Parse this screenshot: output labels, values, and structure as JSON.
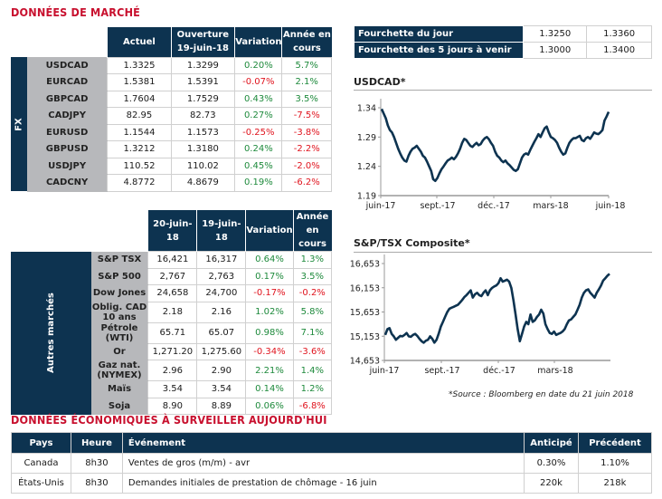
{
  "market_title": "DONNÉES DE MARCHÉ",
  "fx": {
    "group_label": "FX",
    "headers": [
      "Actuel",
      "Ouverture",
      "19-juin-18",
      "Variation",
      "Année en",
      "cours"
    ],
    "rows": [
      {
        "name": "USDCAD",
        "actuel": "1.3325",
        "ouverture": "1.3299",
        "variation": "0.20%",
        "ytd": "5.7%"
      },
      {
        "name": "EURCAD",
        "actuel": "1.5381",
        "ouverture": "1.5391",
        "variation": "-0.07%",
        "ytd": "2.1%"
      },
      {
        "name": "GBPCAD",
        "actuel": "1.7604",
        "ouverture": "1.7529",
        "variation": "0.43%",
        "ytd": "3.5%"
      },
      {
        "name": "CADJPY",
        "actuel": "82.95",
        "ouverture": "82.73",
        "variation": "0.27%",
        "ytd": "-7.5%"
      },
      {
        "name": "EURUSD",
        "actuel": "1.1544",
        "ouverture": "1.1573",
        "variation": "-0.25%",
        "ytd": "-3.8%"
      },
      {
        "name": "GBPUSD",
        "actuel": "1.3212",
        "ouverture": "1.3180",
        "variation": "0.24%",
        "ytd": "-2.2%"
      },
      {
        "name": "USDJPY",
        "actuel": "110.52",
        "ouverture": "110.02",
        "variation": "0.45%",
        "ytd": "-2.0%"
      },
      {
        "name": "CADCNY",
        "actuel": "4.8772",
        "ouverture": "4.8679",
        "variation": "0.19%",
        "ytd": "-6.2%"
      }
    ]
  },
  "other": {
    "group_label": "Autres marchés",
    "headers": [
      "20-juin-18",
      "19-juin-18",
      "Variation",
      "Année en",
      "cours"
    ],
    "rows": [
      {
        "name": "S&P TSX",
        "cur": "16,421",
        "prev": "16,317",
        "variation": "0.64%",
        "ytd": "1.3%"
      },
      {
        "name": "S&P 500",
        "cur": "2,767",
        "prev": "2,763",
        "variation": "0.17%",
        "ytd": "3.5%"
      },
      {
        "name": "Dow Jones",
        "cur": "24,658",
        "prev": "24,700",
        "variation": "-0.17%",
        "ytd": "-0.2%"
      },
      {
        "name": "Oblig. CAD 10 ans",
        "cur": "2.18",
        "prev": "2.16",
        "variation": "1.02%",
        "ytd": "5.8%"
      },
      {
        "name": "Pétrole (WTI)",
        "cur": "65.71",
        "prev": "65.07",
        "variation": "0.98%",
        "ytd": "7.1%"
      },
      {
        "name": "Or",
        "cur": "1,271.20",
        "prev": "1,275.60",
        "variation": "-0.34%",
        "ytd": "-3.6%"
      },
      {
        "name": "Gaz nat. (NYMEX)",
        "cur": "2.96",
        "prev": "2.90",
        "variation": "2.21%",
        "ytd": "1.4%"
      },
      {
        "name": "Maïs",
        "cur": "3.54",
        "prev": "3.54",
        "variation": "0.14%",
        "ytd": "1.2%"
      },
      {
        "name": "Soja",
        "cur": "8.90",
        "prev": "8.89",
        "variation": "0.06%",
        "ytd": "-6.8%"
      }
    ]
  },
  "ranges": [
    {
      "label": "Fourchette du jour",
      "low": "1.3250",
      "high": "1.3360"
    },
    {
      "label": "Fourchette des 5 jours à venir",
      "low": "1.3000",
      "high": "1.3400"
    }
  ],
  "colors": {
    "navy": "#0d3350",
    "positive": "#1e8a3c",
    "negative": "#e0141e",
    "title_red": "#c8102e",
    "label_gray": "#b7b8bb"
  },
  "chart_data": [
    {
      "type": "line",
      "title": "USDCAD*",
      "xlabel": "",
      "ylabel": "",
      "ylim": [
        1.19,
        1.34
      ],
      "yticks": [
        "1.34",
        "1.29",
        "1.24",
        "1.19"
      ],
      "ytick_values": [
        1.34,
        1.29,
        1.24,
        1.19
      ],
      "xticks": [
        "juin-17",
        "sept.-17",
        "déc.-17",
        "mars-18",
        "juin-18"
      ],
      "grid": false,
      "series": [
        {
          "name": "USDCAD",
          "values": [
            1.338,
            1.33,
            1.322,
            1.31,
            1.302,
            1.298,
            1.29,
            1.28,
            1.27,
            1.262,
            1.255,
            1.25,
            1.248,
            1.258,
            1.265,
            1.27,
            1.272,
            1.275,
            1.27,
            1.265,
            1.258,
            1.255,
            1.248,
            1.24,
            1.232,
            1.218,
            1.215,
            1.22,
            1.228,
            1.235,
            1.24,
            1.245,
            1.25,
            1.252,
            1.255,
            1.252,
            1.256,
            1.262,
            1.27,
            1.28,
            1.287,
            1.285,
            1.28,
            1.275,
            1.273,
            1.277,
            1.28,
            1.276,
            1.278,
            1.284,
            1.288,
            1.29,
            1.286,
            1.28,
            1.275,
            1.265,
            1.258,
            1.255,
            1.25,
            1.247,
            1.25,
            1.245,
            1.242,
            1.238,
            1.234,
            1.232,
            1.235,
            1.245,
            1.255,
            1.26,
            1.262,
            1.26,
            1.268,
            1.275,
            1.282,
            1.288,
            1.295,
            1.29,
            1.298,
            1.305,
            1.308,
            1.298,
            1.29,
            1.288,
            1.285,
            1.28,
            1.272,
            1.265,
            1.26,
            1.262,
            1.272,
            1.28,
            1.285,
            1.288,
            1.288,
            1.29,
            1.292,
            1.285,
            1.283,
            1.288,
            1.29,
            1.287,
            1.292,
            1.298,
            1.296,
            1.295,
            1.298,
            1.302,
            1.318,
            1.325,
            1.333
          ]
        }
      ]
    },
    {
      "type": "line",
      "title": "S&P/TSX Composite*",
      "xlabel": "",
      "ylabel": "",
      "ylim": [
        14653,
        16653
      ],
      "yticks": [
        "16,653",
        "16,153",
        "15,653",
        "15,153",
        "14,653"
      ],
      "ytick_values": [
        16653,
        16153,
        15653,
        15153,
        14653
      ],
      "xticks": [
        "juin-17",
        "sept.-17",
        "déc.-17",
        "mars-18"
      ],
      "grid": false,
      "series": [
        {
          "name": "S&P/TSX",
          "values": [
            15180,
            15300,
            15320,
            15200,
            15150,
            15080,
            15120,
            15160,
            15150,
            15180,
            15220,
            15150,
            15140,
            15180,
            15200,
            15160,
            15100,
            15050,
            15020,
            15060,
            15080,
            15150,
            15100,
            15020,
            15080,
            15200,
            15350,
            15450,
            15550,
            15650,
            15720,
            15740,
            15760,
            15780,
            15800,
            15850,
            15900,
            15960,
            16000,
            16050,
            16100,
            15950,
            16020,
            16050,
            16000,
            15980,
            16050,
            16100,
            16000,
            16100,
            16150,
            16180,
            16200,
            16250,
            16350,
            16280,
            16300,
            16320,
            16280,
            16150,
            15900,
            15600,
            15300,
            15050,
            15200,
            15350,
            15450,
            15400,
            15600,
            15450,
            15480,
            15550,
            15600,
            15700,
            15620,
            15400,
            15300,
            15220,
            15200,
            15250,
            15180,
            15200,
            15220,
            15250,
            15300,
            15400,
            15480,
            15500,
            15550,
            15600,
            15700,
            15800,
            15950,
            16050,
            16100,
            16120,
            16050,
            16000,
            15950,
            16050,
            16120,
            16200,
            16300,
            16350,
            16400,
            16440
          ]
        }
      ]
    }
  ],
  "source_note": "*Source : Bloomberg en date du  21 juin 2018",
  "econ": {
    "title": "DONNÉES ÉCONOMIQUES À SURVEILLER AUJOURD'HUI",
    "headers": [
      "Pays",
      "Heure",
      "Événement",
      "Anticipé",
      "Précédent"
    ],
    "rows": [
      {
        "pays": "Canada",
        "heure": "8h30",
        "event": "Ventes de gros (m/m) - avr",
        "anticipe": "0.30%",
        "precedent": "1.10%"
      },
      {
        "pays": "États-Unis",
        "heure": "8h30",
        "event": "Demandes initiales de prestation de chômage - 16 juin",
        "anticipe": "220k",
        "precedent": "218k"
      }
    ]
  }
}
